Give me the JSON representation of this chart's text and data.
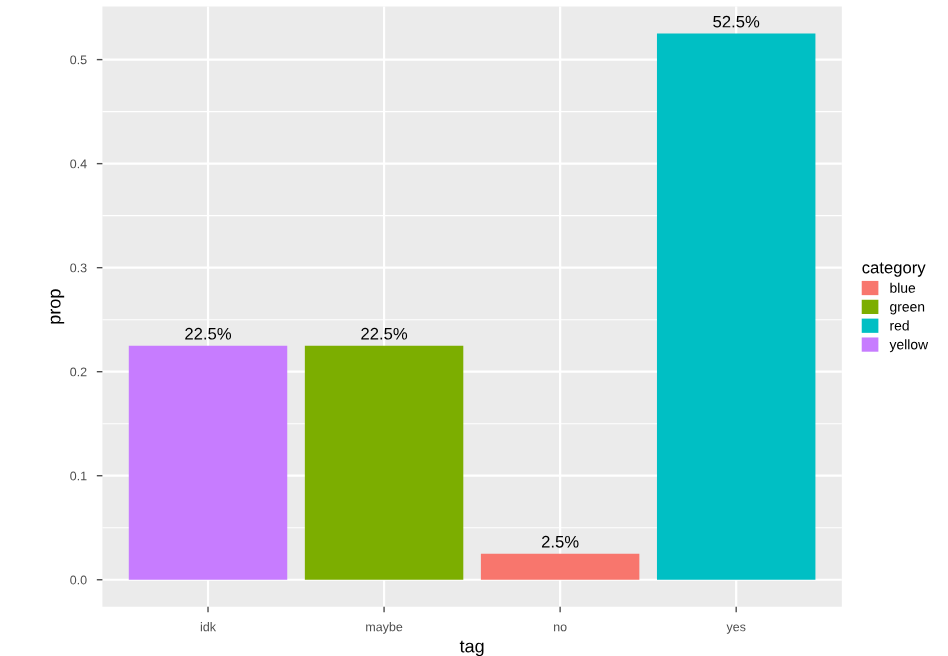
{
  "chart_data": {
    "type": "bar",
    "xlabel": "tag",
    "ylabel": "prop",
    "legend_title": "category",
    "legend": "right",
    "grid": true,
    "categories": [
      "idk",
      "maybe",
      "no",
      "yes"
    ],
    "series": [
      {
        "name": "blue",
        "color": "#f8766d",
        "values": [
          null,
          null,
          0.025,
          null
        ],
        "value_labels": [
          null,
          null,
          "2.5%",
          null
        ]
      },
      {
        "name": "green",
        "color": "#7cae00",
        "values": [
          null,
          0.225,
          null,
          null
        ],
        "value_labels": [
          null,
          "22.5%",
          null,
          null
        ]
      },
      {
        "name": "red",
        "color": "#00bfc4",
        "values": [
          null,
          null,
          null,
          0.525
        ],
        "value_labels": [
          null,
          null,
          null,
          "52.5%"
        ]
      },
      {
        "name": "yellow",
        "color": "#c77cff",
        "values": [
          0.225,
          null,
          null,
          null
        ],
        "value_labels": [
          "22.5%",
          null,
          null,
          null
        ]
      }
    ],
    "ylim": [
      -0.026,
      0.551
    ],
    "yticks": [
      {
        "value": 0,
        "label": "0.0"
      },
      0.1,
      0.2,
      0.3,
      0.4,
      0.5
    ]
  }
}
